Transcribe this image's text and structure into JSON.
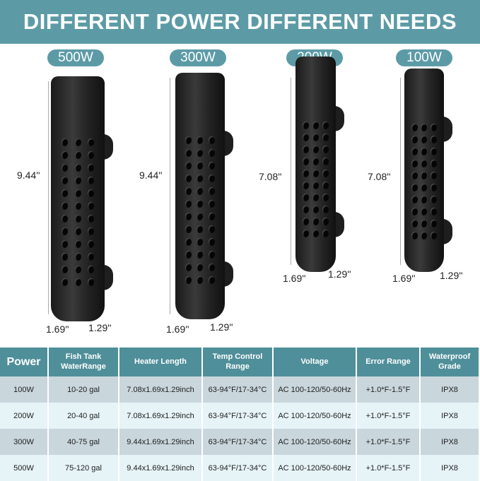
{
  "title": "DIFFERENT POWER DIFFERENT NEEDS",
  "heaters": [
    {
      "power": "500W",
      "length": "9.44''",
      "width": "1.69''",
      "depth": "1.29''"
    },
    {
      "power": "300W",
      "length": "9.44''",
      "width": "1.69''",
      "depth": "1.29''"
    },
    {
      "power": "200W",
      "length": "7.08''",
      "width": "1.69''",
      "depth": "1.29''"
    },
    {
      "power": "100W",
      "length": "7.08''",
      "width": "1.69''",
      "depth": "1.29''"
    }
  ],
  "table": {
    "headers": [
      "Power",
      "Fish Tank WaterRange",
      "Heater Length",
      "Temp Control Range",
      "Voltage",
      "Error Range",
      "Waterproof Grade"
    ],
    "rows": [
      [
        "100W",
        "10-20 gal",
        "7.08x1.69x1.29inch",
        "63-94°F/17-34°C",
        "AC 100-120/50-60Hz",
        "+1.0*F-1.5°F",
        "IPX8"
      ],
      [
        "200W",
        "20-40 gal",
        "7.08x1.69x1.29inch",
        "63-94°F/17-34°C",
        "AC 100-120/50-60Hz",
        "+1.0*F-1.5°F",
        "IPX8"
      ],
      [
        "300W",
        "40-75 gal",
        "9.44x1.69x1.29inch",
        "63-94°F/17-34°C",
        "AC 100-120/50-60Hz",
        "+1.0*F-1.5°F",
        "IPX8"
      ],
      [
        "500W",
        "75-120 gal",
        "9.44x1.69x1.29inch",
        "63-94°F/17-34°C",
        "AC 100-120/50-60Hz",
        "+1.0*F-1.5°F",
        "IPX8"
      ]
    ]
  },
  "colors": {
    "accent": "#5c9ba6",
    "header": "#4f8f9a",
    "row_dark": "#c9d6dc",
    "row_light": "#e6f3f7"
  }
}
